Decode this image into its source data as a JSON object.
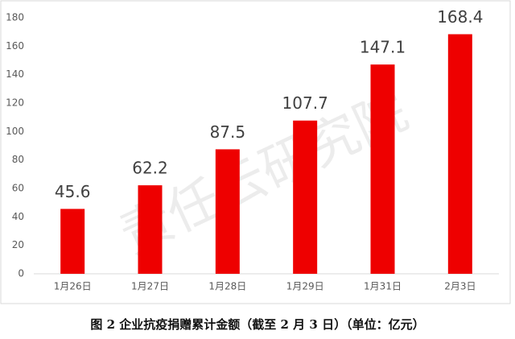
{
  "chart_data": {
    "type": "bar",
    "categories": [
      "1月26日",
      "1月27日",
      "1月28日",
      "1月29日",
      "1月31日",
      "2月3日"
    ],
    "values": [
      45.6,
      62.2,
      87.5,
      107.7,
      147.1,
      168.4
    ],
    "color": "#ee0000",
    "ylim": [
      0,
      180
    ],
    "yticks": [
      0,
      20,
      40,
      60,
      80,
      100,
      120,
      140,
      160,
      180
    ],
    "grid": false,
    "caption": "图 2  企业抗疫捐赠累计金额（截至 2 月 3 日）（单位：亿元）",
    "watermark": "责任云研究院"
  }
}
